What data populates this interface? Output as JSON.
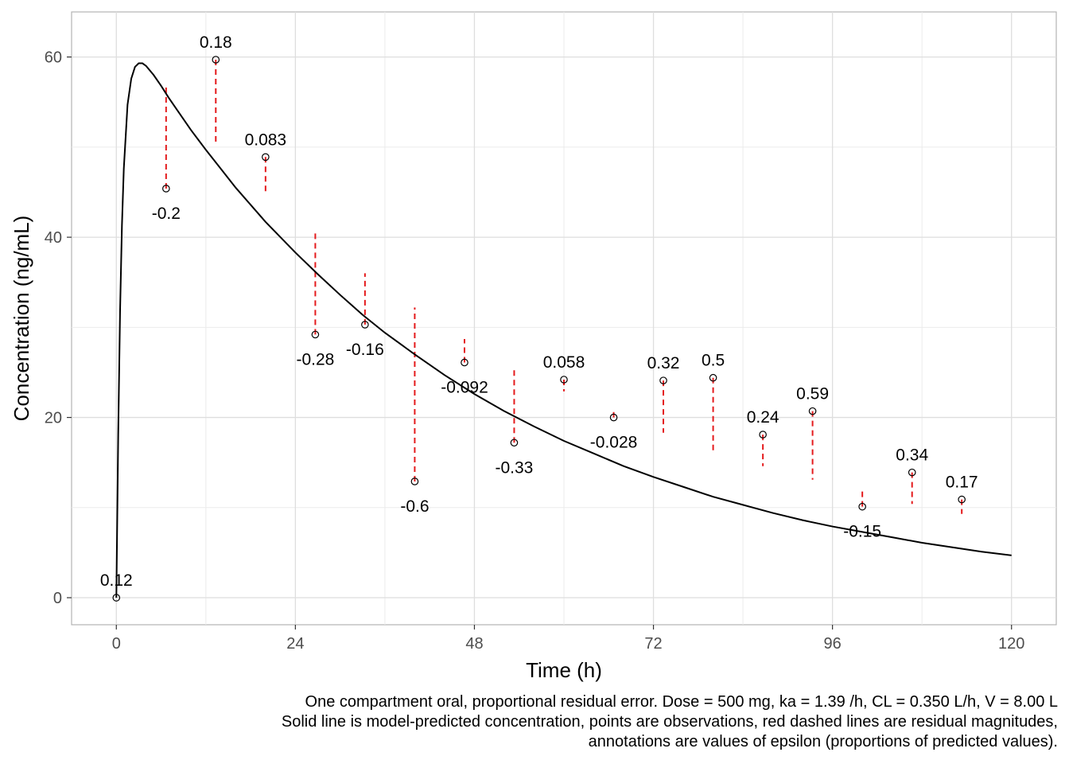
{
  "chart_data": {
    "type": "line",
    "title": "",
    "xlabel": "Time (h)",
    "ylabel": "Concentration (ng/mL)",
    "xlim": [
      -6,
      126
    ],
    "ylim": [
      -3,
      65
    ],
    "x_ticks": [
      0,
      24,
      48,
      72,
      96,
      120
    ],
    "x_tick_labels": [
      "0",
      "24",
      "48",
      "72",
      "96",
      "120"
    ],
    "y_ticks": [
      0,
      20,
      40,
      60
    ],
    "y_tick_labels": [
      "0",
      "20",
      "40",
      "60"
    ],
    "grid": true,
    "legend": "none",
    "model": {
      "description": "One compartment oral, proportional residual error",
      "dose_mg": 500,
      "ka_per_h": 1.39,
      "cl_l_per_h": 0.35,
      "v_l": 8.0
    },
    "series": [
      {
        "type": "line",
        "color": "#000000",
        "x": [
          0,
          0.25,
          0.5,
          0.75,
          1,
          1.5,
          2,
          2.5,
          3,
          3.5,
          4,
          5,
          6,
          7,
          8,
          10,
          12,
          14,
          16,
          18,
          20,
          22,
          24,
          27,
          30,
          33,
          36,
          40,
          44,
          48,
          52,
          56,
          60,
          64,
          68,
          72,
          76,
          80,
          84,
          88,
          92,
          96,
          100,
          104,
          108,
          112,
          116,
          120
        ],
        "y": [
          0,
          18.1,
          31.8,
          41.3,
          47.6,
          54.7,
          57.6,
          58.9,
          59.3,
          59.3,
          59.0,
          58.0,
          56.8,
          55.5,
          54.3,
          51.9,
          49.7,
          47.6,
          45.5,
          43.6,
          41.7,
          40.0,
          38.3,
          35.9,
          33.6,
          31.4,
          29.4,
          27.0,
          24.7,
          22.6,
          20.7,
          19.0,
          17.4,
          16.0,
          14.6,
          13.4,
          12.3,
          11.2,
          10.3,
          9.4,
          8.6,
          7.9,
          7.3,
          6.7,
          6.1,
          5.6,
          5.1,
          4.7
        ]
      }
    ],
    "observations": [
      {
        "x": 0,
        "y": 0.0,
        "pred": 0.0,
        "label": "0.12"
      },
      {
        "x": 13.33,
        "y": 59.7,
        "pred": 50.6,
        "label": "0.18"
      },
      {
        "x": 6.67,
        "y": 45.4,
        "pred": 56.7,
        "label": "-0.2"
      },
      {
        "x": 20,
        "y": 48.9,
        "pred": 45.1,
        "label": "0.083"
      },
      {
        "x": 26.67,
        "y": 29.2,
        "pred": 40.5,
        "label": "-0.28"
      },
      {
        "x": 33.33,
        "y": 30.3,
        "pred": 36.0,
        "label": "-0.16"
      },
      {
        "x": 40,
        "y": 12.9,
        "pred": 32.2,
        "label": "-0.6"
      },
      {
        "x": 46.67,
        "y": 26.1,
        "pred": 28.7,
        "label": "-0.092"
      },
      {
        "x": 53.33,
        "y": 17.2,
        "pred": 25.6,
        "label": "-0.33"
      },
      {
        "x": 60,
        "y": 24.2,
        "pred": 22.9,
        "label": "0.058"
      },
      {
        "x": 66.67,
        "y": 20.0,
        "pred": 20.6,
        "label": "-0.028"
      },
      {
        "x": 73.33,
        "y": 24.1,
        "pred": 18.3,
        "label": "0.32"
      },
      {
        "x": 80,
        "y": 24.4,
        "pred": 16.3,
        "label": "0.5"
      },
      {
        "x": 86.67,
        "y": 18.1,
        "pred": 14.6,
        "label": "0.24"
      },
      {
        "x": 93.33,
        "y": 20.7,
        "pred": 13.1,
        "label": "0.59"
      },
      {
        "x": 100,
        "y": 10.1,
        "pred": 11.8,
        "label": "-0.15"
      },
      {
        "x": 106.67,
        "y": 13.9,
        "pred": 10.4,
        "label": "0.34"
      },
      {
        "x": 113.33,
        "y": 10.9,
        "pred": 9.3,
        "label": "0.17"
      }
    ],
    "residual_color": "#e41a1c",
    "caption": [
      "One compartment oral, proportional residual error. Dose = 500 mg, ka = 1.39 /h, CL = 0.350 L/h, V = 8.00 L",
      "Solid line is model-predicted concentration, points are observations, red dashed lines are residual magnitudes,",
      "annotations are values of epsilon (proportions of predicted values)."
    ]
  }
}
